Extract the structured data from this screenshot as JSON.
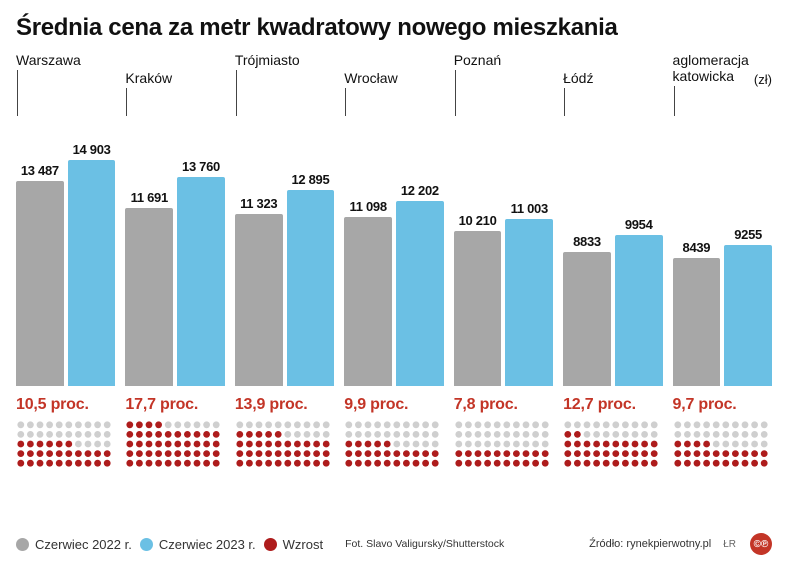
{
  "title": "Średnia cena za metr kwadratowy nowego mieszkania",
  "unit_label": "(zł)",
  "colors": {
    "bar_2022": "#a7a7a7",
    "bar_2023": "#6bc0e4",
    "pct_text": "#c33527",
    "dot_inactive": "#cfcfcf",
    "dot_active": "#ae1c1c",
    "title_text": "#111111",
    "background": "#ffffff"
  },
  "chart": {
    "type": "bar",
    "max_value": 15800,
    "bar_area_height": 240,
    "dotgrid": {
      "rows": 5,
      "cols": 10
    },
    "value_fontsize": 13,
    "pct_fontsize": 16,
    "city_label_fontsize": 14
  },
  "cities": [
    {
      "name": "Warszawa",
      "v2022": 13487,
      "v2022_disp": "13 487",
      "v2023": 14903,
      "v2023_disp": "14 903",
      "pct": 10.5,
      "pct_disp": "10,5 proc.",
      "label_offset": 0
    },
    {
      "name": "Kraków",
      "v2022": 11691,
      "v2022_disp": "11 691",
      "v2023": 13760,
      "v2023_disp": "13 760",
      "pct": 17.7,
      "pct_disp": "17,7 proc.",
      "label_offset": 18
    },
    {
      "name": "Trójmiasto",
      "v2022": 11323,
      "v2022_disp": "11 323",
      "v2023": 12895,
      "v2023_disp": "12 895",
      "pct": 13.9,
      "pct_disp": "13,9 proc.",
      "label_offset": 0
    },
    {
      "name": "Wrocław",
      "v2022": 11098,
      "v2022_disp": "11 098",
      "v2023": 12202,
      "v2023_disp": "12 202",
      "pct": 9.9,
      "pct_disp": "9,9 proc.",
      "label_offset": 18
    },
    {
      "name": "Poznań",
      "v2022": 10210,
      "v2022_disp": "10 210",
      "v2023": 11003,
      "v2023_disp": "11 003",
      "pct": 7.8,
      "pct_disp": "7,8 proc.",
      "label_offset": 0
    },
    {
      "name": "Łódź",
      "v2022": 8833,
      "v2022_disp": "8833",
      "v2023": 9954,
      "v2023_disp": "9954",
      "pct": 12.7,
      "pct_disp": "12,7 proc.",
      "label_offset": 18
    },
    {
      "name": "aglomeracja\nkatowicka",
      "v2022": 8439,
      "v2022_disp": "8439",
      "v2023": 9255,
      "v2023_disp": "9255",
      "pct": 9.7,
      "pct_disp": "9,7 proc.",
      "label_offset": 0
    }
  ],
  "legend": {
    "a": "Czerwiec 2022 r.",
    "b": "Czerwiec 2023 r.",
    "c": "Wzrost"
  },
  "credit": "Fot. Slavo Valigursky/Shutterstock",
  "source": "Źródło: rynekpierwotny.pl",
  "byline": "ŁR",
  "badge": {
    "text": "©℗",
    "bg": "#c33527"
  }
}
